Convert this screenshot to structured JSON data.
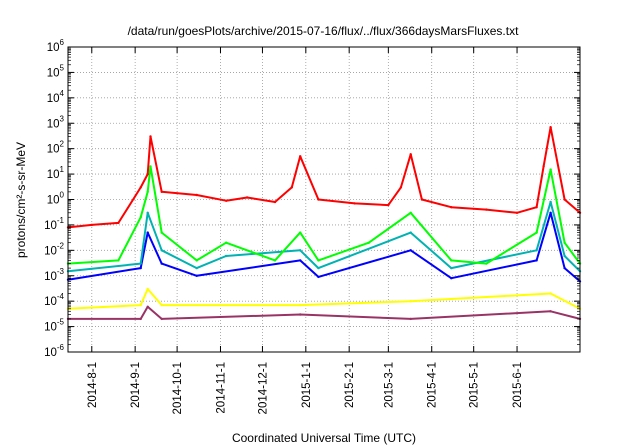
{
  "chart_data": {
    "type": "line",
    "title": "/data/run/goesPlots/archive/2015-07-16/flux/../flux/366daysMarsFluxes.txt",
    "xlabel": "Coordinated Universal Time (UTC)",
    "ylabel": "protons/cm²-s-sr-MeV",
    "yscale": "log",
    "ylim": [
      1e-06,
      1000000.0
    ],
    "xlim": [
      "2014-07-15",
      "2015-07-16"
    ],
    "grid": true,
    "legend": "none",
    "y_ticks": [
      {
        "base": "10",
        "exp": "-6"
      },
      {
        "base": "10",
        "exp": "-5"
      },
      {
        "base": "10",
        "exp": "-4"
      },
      {
        "base": "10",
        "exp": "-3"
      },
      {
        "base": "10",
        "exp": "-2"
      },
      {
        "base": "10",
        "exp": "-1"
      },
      {
        "base": "10",
        "exp": "0"
      },
      {
        "base": "10",
        "exp": "1"
      },
      {
        "base": "10",
        "exp": "2"
      },
      {
        "base": "10",
        "exp": "3"
      },
      {
        "base": "10",
        "exp": "4"
      },
      {
        "base": "10",
        "exp": "5"
      },
      {
        "base": "10",
        "exp": "6"
      }
    ],
    "x_ticks": [
      {
        "label": "2014-8-1",
        "date": "2014-08-01"
      },
      {
        "label": "2014-9-1",
        "date": "2014-09-01"
      },
      {
        "label": "2014-10-1",
        "date": "2014-10-01"
      },
      {
        "label": "2014-11-1",
        "date": "2014-11-01"
      },
      {
        "label": "2014-12-1",
        "date": "2014-12-01"
      },
      {
        "label": "2015-1-1",
        "date": "2015-01-01"
      },
      {
        "label": "2015-2-1",
        "date": "2015-02-01"
      },
      {
        "label": "2015-3-1",
        "date": "2015-03-01"
      },
      {
        "label": "2015-4-1",
        "date": "2015-04-01"
      },
      {
        "label": "2015-5-1",
        "date": "2015-05-01"
      },
      {
        "label": "2015-6-1",
        "date": "2015-06-01"
      }
    ],
    "series": [
      {
        "color": "#ff0000",
        "x": [
          "2014-07-15",
          "2014-08-01",
          "2014-08-20",
          "2014-09-05",
          "2014-09-10",
          "2014-09-12",
          "2014-09-20",
          "2014-10-15",
          "2014-11-05",
          "2014-11-20",
          "2014-12-10",
          "2014-12-22",
          "2014-12-28",
          "2015-01-10",
          "2015-02-05",
          "2015-03-01",
          "2015-03-10",
          "2015-03-17",
          "2015-03-25",
          "2015-04-15",
          "2015-05-10",
          "2015-06-01",
          "2015-06-15",
          "2015-06-20",
          "2015-06-25",
          "2015-07-05",
          "2015-07-16"
        ],
        "values": [
          0.08,
          0.1,
          0.12,
          3,
          10,
          300,
          2,
          1.5,
          0.9,
          1.2,
          0.8,
          3,
          50,
          1,
          0.7,
          0.6,
          3,
          60,
          1,
          0.5,
          0.4,
          0.3,
          0.5,
          20,
          700,
          1,
          0.3
        ]
      },
      {
        "color": "#00ff00",
        "x": [
          "2014-07-15",
          "2014-08-20",
          "2014-09-05",
          "2014-09-10",
          "2014-09-12",
          "2014-09-20",
          "2014-10-15",
          "2014-11-05",
          "2014-12-10",
          "2014-12-28",
          "2015-01-10",
          "2015-02-15",
          "2015-03-17",
          "2015-04-15",
          "2015-05-10",
          "2015-06-15",
          "2015-06-25",
          "2015-07-05",
          "2015-07-16"
        ],
        "values": [
          0.003,
          0.004,
          0.2,
          2,
          20,
          0.05,
          0.004,
          0.02,
          0.004,
          0.05,
          0.004,
          0.02,
          0.3,
          0.004,
          0.003,
          0.05,
          15,
          0.02,
          0.003
        ]
      },
      {
        "color": "#00b2b2",
        "x": [
          "2014-07-15",
          "2014-09-05",
          "2014-09-10",
          "2014-09-20",
          "2014-10-15",
          "2014-11-05",
          "2014-12-28",
          "2015-01-10",
          "2015-03-17",
          "2015-04-15",
          "2015-06-15",
          "2015-06-25",
          "2015-07-05",
          "2015-07-16"
        ],
        "values": [
          0.0015,
          0.003,
          0.3,
          0.01,
          0.002,
          0.006,
          0.01,
          0.002,
          0.05,
          0.002,
          0.01,
          0.8,
          0.006,
          0.0015
        ]
      },
      {
        "color": "#0000ff",
        "x": [
          "2014-07-15",
          "2014-09-05",
          "2014-09-10",
          "2014-09-20",
          "2014-10-15",
          "2014-12-28",
          "2015-01-10",
          "2015-03-17",
          "2015-04-15",
          "2015-06-15",
          "2015-06-25",
          "2015-07-05",
          "2015-07-16"
        ],
        "values": [
          0.0007,
          0.002,
          0.05,
          0.003,
          0.001,
          0.004,
          0.0009,
          0.01,
          0.0008,
          0.004,
          0.3,
          0.002,
          0.0006
        ]
      },
      {
        "color": "#ffff00",
        "x": [
          "2014-07-15",
          "2014-09-05",
          "2014-09-10",
          "2014-09-20",
          "2014-12-28",
          "2015-03-17",
          "2015-06-25",
          "2015-07-16"
        ],
        "values": [
          5e-05,
          7e-05,
          0.0003,
          7e-05,
          7e-05,
          0.0001,
          0.0002,
          5e-05
        ]
      },
      {
        "color": "#993366",
        "x": [
          "2014-07-15",
          "2014-09-05",
          "2014-09-10",
          "2014-09-20",
          "2014-12-28",
          "2015-03-17",
          "2015-06-25",
          "2015-07-16"
        ],
        "values": [
          2e-05,
          2e-05,
          6e-05,
          2e-05,
          3e-05,
          2e-05,
          4e-05,
          2e-05
        ]
      }
    ]
  }
}
